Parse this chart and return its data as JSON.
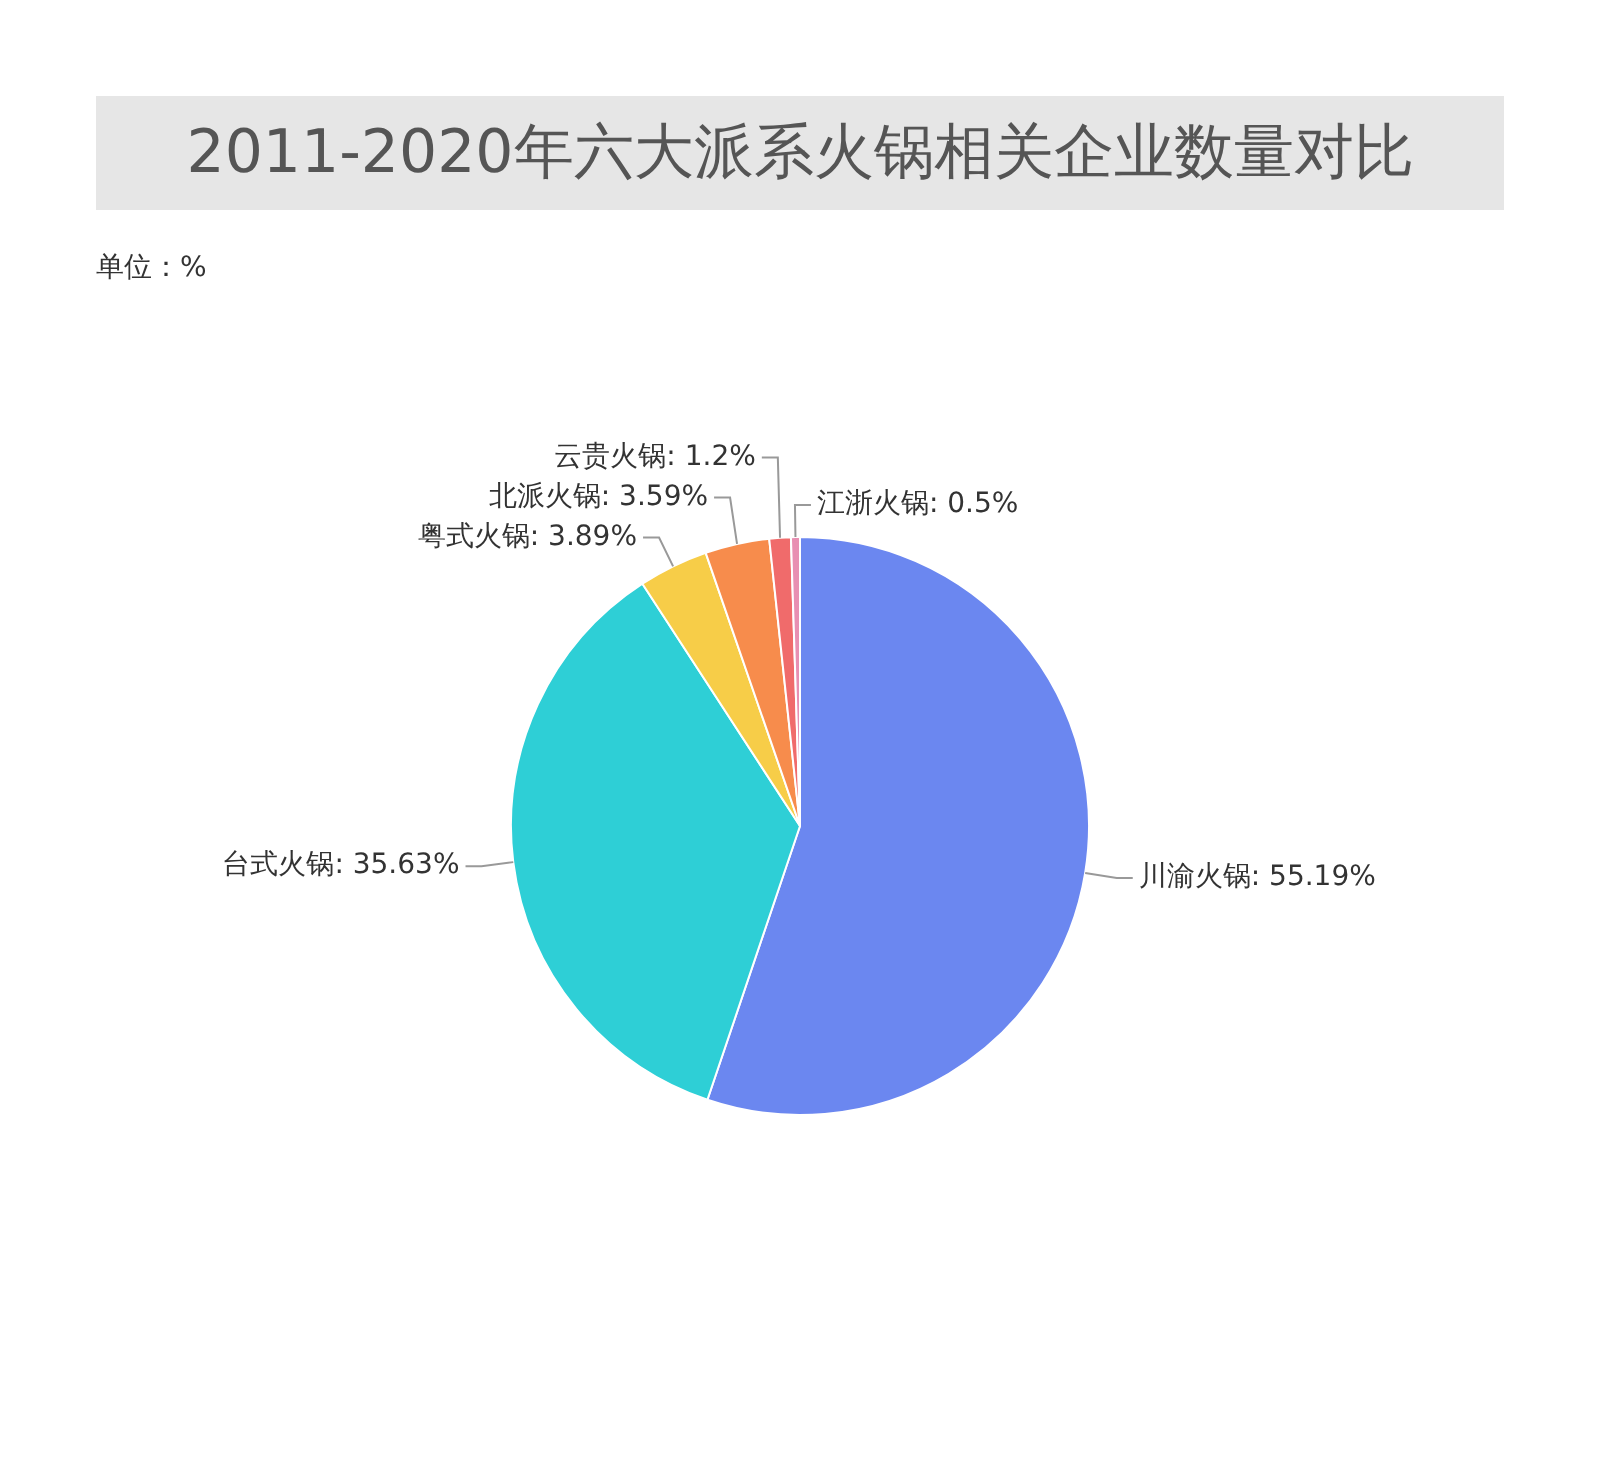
{
  "chart_data": {
    "type": "pie",
    "title": "2011-2020年六大派系火锅相关企业数量对比",
    "subtitle": "单位：%",
    "categories": [
      "川渝火锅",
      "台式火锅",
      "粤式火锅",
      "北派火锅",
      "云贵火锅",
      "江浙火锅"
    ],
    "values": [
      55.19,
      35.63,
      3.89,
      3.59,
      1.2,
      0.5
    ],
    "colors": [
      "#6b87f0",
      "#2ecfd6",
      "#f7cd48",
      "#f78c4c",
      "#f06b6b",
      "#e88fb2"
    ],
    "value_labels": [
      "55.19%",
      "35.63%",
      "3.89%",
      "3.59%",
      "1.2%",
      "0.5%"
    ],
    "legend": false
  }
}
